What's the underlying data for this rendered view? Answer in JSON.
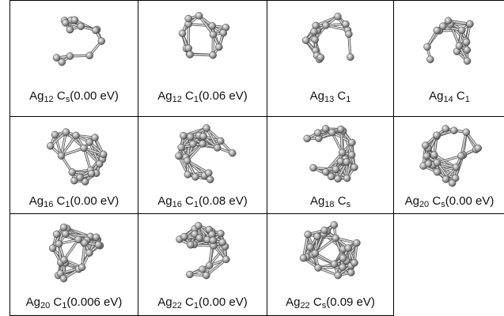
{
  "grid": {
    "rows": [
      [
        {
          "el": "Ag",
          "n": "12",
          "sym": "C",
          "symsub": "s",
          "energy": "(0.00 eV)"
        },
        {
          "el": "Ag",
          "n": "12",
          "sym": "C",
          "symsub": "1",
          "energy": "(0.06 eV)"
        },
        {
          "el": "Ag",
          "n": "13",
          "sym": "C",
          "symsub": "1"
        },
        {
          "el": "Ag",
          "n": "14",
          "sym": "C",
          "symsub": "1"
        }
      ],
      [
        {
          "el": "Ag",
          "n": "16",
          "sym": "C",
          "symsub": "1",
          "energy": "(0.00 eV)"
        },
        {
          "el": "Ag",
          "n": "16",
          "sym": "C",
          "symsub": "1",
          "energy": "(0.08 eV)"
        },
        {
          "el": "Ag",
          "n": "18",
          "sym": "C",
          "symsub": "s"
        },
        {
          "el": "Ag",
          "n": "20",
          "sym": "C",
          "symsub": "s",
          "energy": "(0.00 eV)"
        }
      ],
      [
        {
          "el": "Ag",
          "n": "20",
          "sym": "C",
          "symsub": "1",
          "energy": "(0.006 eV)"
        },
        {
          "el": "Ag",
          "n": "22",
          "sym": "C",
          "symsub": "1",
          "energy": "(0.00 eV)"
        },
        {
          "el": "Ag",
          "n": "22",
          "sym": "C",
          "symsub": "s",
          "energy": "(0.09 eV)"
        }
      ]
    ]
  }
}
